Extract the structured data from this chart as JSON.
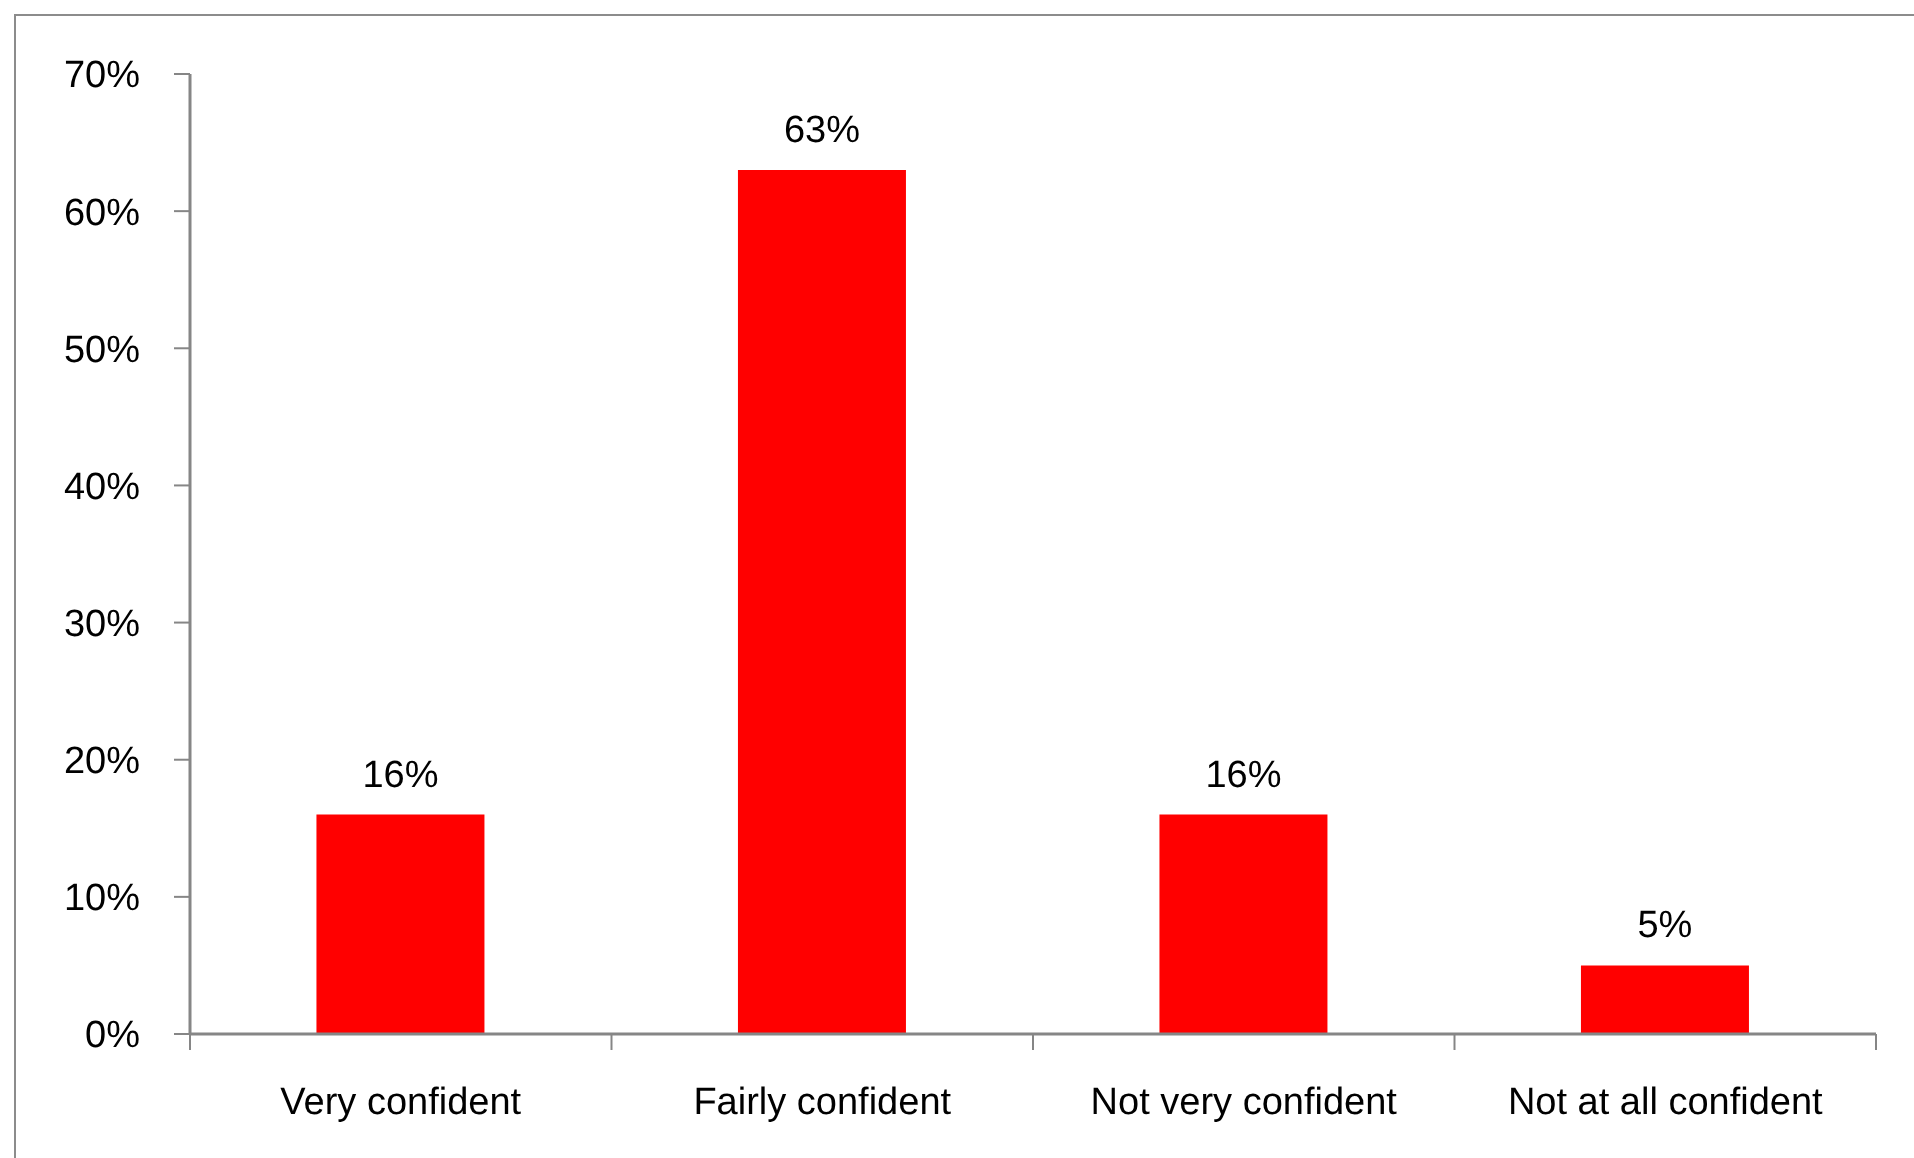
{
  "chart_data": {
    "type": "bar",
    "categories": [
      "Very confident",
      "Fairly confident",
      "Not very confident",
      "Not at all confident"
    ],
    "values": [
      16,
      63,
      16,
      5
    ],
    "color": "#ff0000",
    "value_labels": [
      "16%",
      "63%",
      "16%",
      "5%"
    ],
    "ylim": [
      0,
      70
    ],
    "yticks": [
      {
        "value": 0,
        "label": "0%"
      },
      {
        "value": 10,
        "label": "10%"
      },
      {
        "value": 20,
        "label": "20%"
      },
      {
        "value": 30,
        "label": "30%"
      },
      {
        "value": 40,
        "label": "40%"
      },
      {
        "value": 50,
        "label": "50%"
      },
      {
        "value": 60,
        "label": "60%"
      },
      {
        "value": 70,
        "label": "70%"
      }
    ]
  }
}
